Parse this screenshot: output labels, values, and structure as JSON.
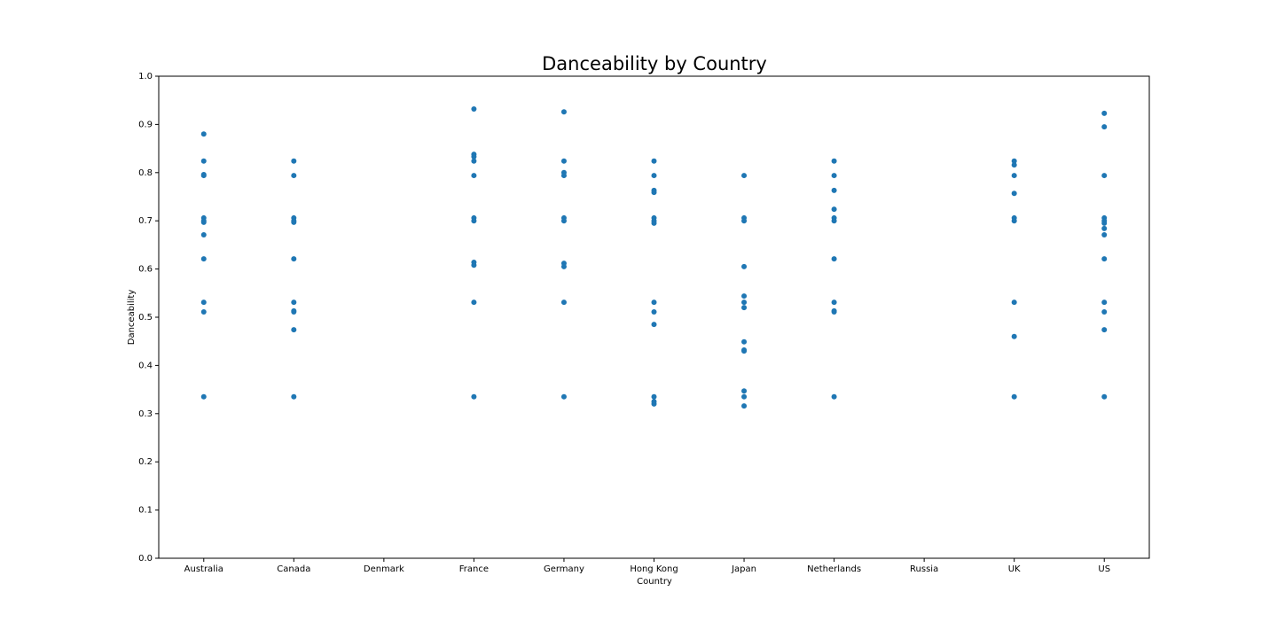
{
  "chart_data": {
    "type": "scatter",
    "title": "Danceability by Country",
    "x_label": "Country",
    "y_label": "Danceability",
    "categories": [
      "Australia",
      "Canada",
      "Denmark",
      "France",
      "Germany",
      "Hong Kong",
      "Japan",
      "Netherlands",
      "Russia",
      "UK",
      "US"
    ],
    "color": "#1f77b4",
    "x": [
      "Australia",
      "Australia",
      "Australia",
      "Australia",
      "Australia",
      "Australia",
      "Australia",
      "Australia",
      "Australia",
      "Australia",
      "Australia",
      "Australia",
      "Canada",
      "Canada",
      "Canada",
      "Canada",
      "Canada",
      "Canada",
      "Canada",
      "Canada",
      "Canada",
      "Canada",
      "Canada",
      "France",
      "France",
      "France",
      "France",
      "France",
      "France",
      "France",
      "France",
      "France",
      "France",
      "France",
      "Germany",
      "Germany",
      "Germany",
      "Germany",
      "Germany",
      "Germany",
      "Germany",
      "Germany",
      "Germany",
      "Germany",
      "Hong Kong",
      "Hong Kong",
      "Hong Kong",
      "Hong Kong",
      "Hong Kong",
      "Hong Kong",
      "Hong Kong",
      "Hong Kong",
      "Hong Kong",
      "Hong Kong",
      "Hong Kong",
      "Hong Kong",
      "Hong Kong",
      "Japan",
      "Japan",
      "Japan",
      "Japan",
      "Japan",
      "Japan",
      "Japan",
      "Japan",
      "Japan",
      "Japan",
      "Japan",
      "Japan",
      "Japan",
      "Netherlands",
      "Netherlands",
      "Netherlands",
      "Netherlands",
      "Netherlands",
      "Netherlands",
      "Netherlands",
      "Netherlands",
      "Netherlands",
      "Netherlands",
      "Netherlands",
      "UK",
      "UK",
      "UK",
      "UK",
      "UK",
      "UK",
      "UK",
      "UK",
      "UK",
      "US",
      "US",
      "US",
      "US",
      "US",
      "US",
      "US",
      "US",
      "US",
      "US",
      "US",
      "US",
      "US"
    ],
    "values": [
      0.88,
      0.824,
      0.796,
      0.794,
      0.706,
      0.7,
      0.697,
      0.671,
      0.621,
      0.531,
      0.511,
      0.335,
      0.824,
      0.794,
      0.706,
      0.7,
      0.697,
      0.621,
      0.531,
      0.513,
      0.511,
      0.474,
      0.335,
      0.932,
      0.838,
      0.833,
      0.824,
      0.794,
      0.706,
      0.7,
      0.614,
      0.608,
      0.531,
      0.335,
      0.926,
      0.824,
      0.8,
      0.794,
      0.706,
      0.7,
      0.612,
      0.605,
      0.531,
      0.335,
      0.824,
      0.794,
      0.763,
      0.759,
      0.706,
      0.7,
      0.695,
      0.531,
      0.511,
      0.485,
      0.335,
      0.325,
      0.32,
      0.794,
      0.706,
      0.7,
      0.605,
      0.544,
      0.531,
      0.52,
      0.449,
      0.432,
      0.43,
      0.347,
      0.335,
      0.316,
      0.824,
      0.794,
      0.763,
      0.724,
      0.706,
      0.7,
      0.621,
      0.531,
      0.513,
      0.511,
      0.335,
      0.824,
      0.816,
      0.794,
      0.757,
      0.706,
      0.7,
      0.531,
      0.46,
      0.335,
      0.923,
      0.895,
      0.794,
      0.706,
      0.7,
      0.695,
      0.684,
      0.671,
      0.621,
      0.531,
      0.511,
      0.474,
      0.335
    ],
    "ylim": [
      0,
      1
    ],
    "yticks": [
      {
        "value": 0,
        "label": "0.0"
      },
      0.1,
      0.2,
      0.3,
      0.4,
      0.5,
      0.6,
      0.7,
      0.8,
      0.9,
      {
        "value": 1,
        "label": "1.0"
      }
    ]
  }
}
